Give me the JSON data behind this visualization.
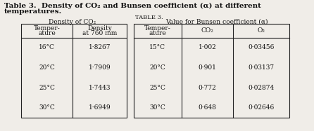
{
  "title_line1": "Table 3.  Density of CO₂ and Bunsen coefficient (α) at different",
  "title_line2": "temperatures.",
  "table3_label": "TABLE 3.",
  "left_table_title": "Density of CO₂",
  "right_table_title": "Value for Bunsen coefficient (α)",
  "left_header_col1_line1": "Temper-",
  "left_header_col1_line2": "ature",
  "left_header_col2_line1": "Density",
  "left_header_col2_line2": "at 760 mm",
  "left_rows": [
    [
      "16°C",
      "1·8267"
    ],
    [
      "20°C",
      "1·7909"
    ],
    [
      "25°C",
      "1·7443"
    ],
    [
      "30°C",
      "1·6949"
    ]
  ],
  "right_header_col1_line1": "Temper-",
  "right_header_col1_line2": "ature",
  "right_header_col2": "CO₂",
  "right_header_col3": "O₂",
  "right_rows": [
    [
      "15°C",
      "1·002",
      "0·03456"
    ],
    [
      "20°C",
      "0·901",
      "0·03137"
    ],
    [
      "25°C",
      "0·772",
      "0·02874"
    ],
    [
      "30°C",
      "0·648",
      "0·02646"
    ]
  ],
  "bg_color": "#f0ede8",
  "line_color": "#222222",
  "text_color": "#111111",
  "font_size_title": 7.5,
  "font_size_subtitle": 6.5,
  "font_size_header": 6.5,
  "font_size_data": 6.5,
  "font_size_table_label": 6.0
}
